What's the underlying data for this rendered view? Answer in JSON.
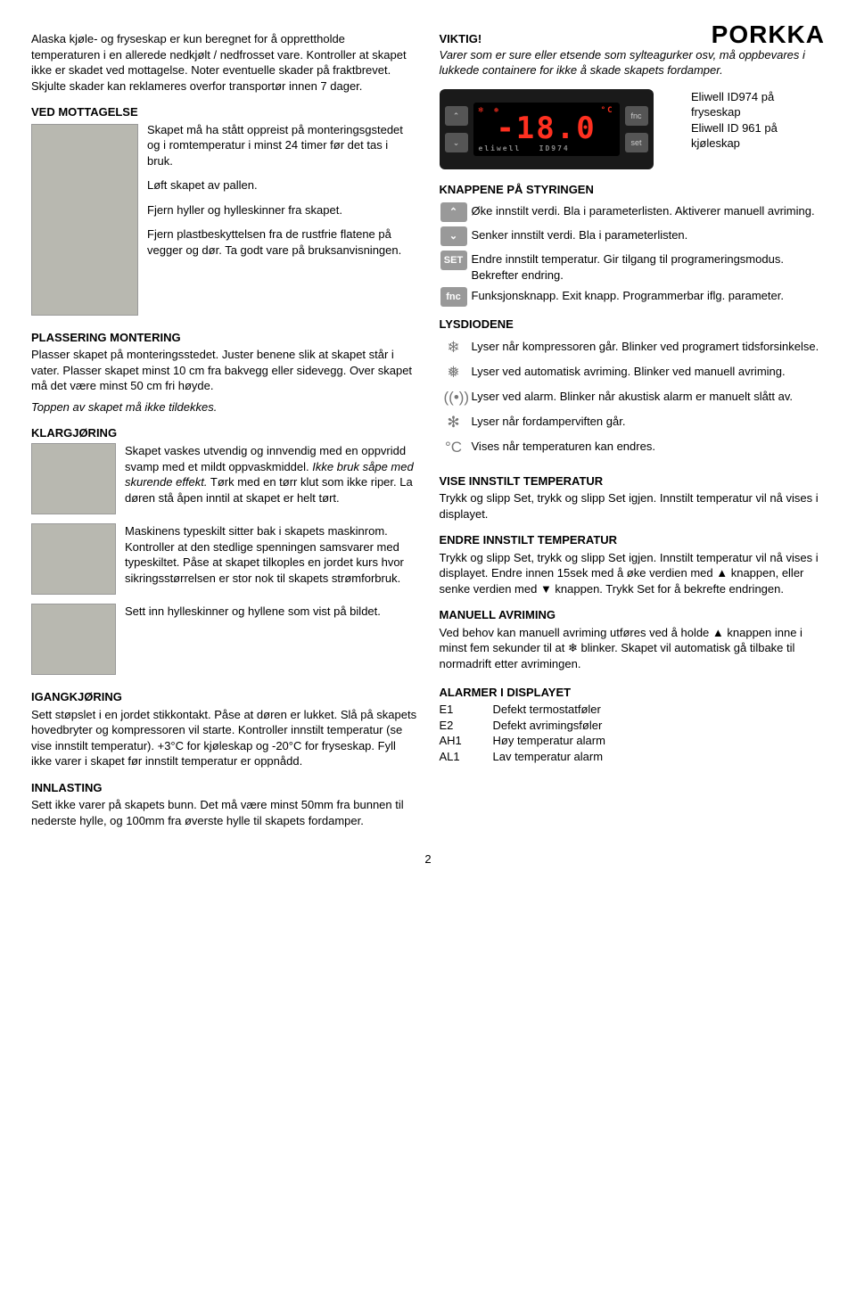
{
  "brand": "PORKKA",
  "pageNumber": "2",
  "left": {
    "intro": "Alaska kjøle- og fryseskap er kun beregnet for å opprettholde temperaturen i en allerede nedkjølt / nedfrosset vare. Kontroller at skapet ikke er skadet ved mottagelse. Noter eventuelle skader på fraktbrevet. Skjulte skader kan reklameres overfor transportør innen 7 dager.",
    "mottagelse": {
      "title": "VED MOTTAGELSE",
      "p1": "Skapet må ha stått oppreist på monteringsgstedet og i romtemperatur i minst 24 timer før det tas i bruk.",
      "p2": "Løft skapet av pallen.",
      "p3": "Fjern hyller og hylleskinner fra skapet.",
      "p4": "Fjern plastbeskyttelsen fra de rustfrie flatene på vegger og dør. Ta godt vare på bruksanvisningen."
    },
    "plassering": {
      "title": "PLASSERING MONTERING",
      "p1": "Plasser skapet på monteringsstedet. Juster benene slik at skapet står i vater. Plasser skapet minst 10 cm fra bakvegg eller sidevegg. Over skapet må det være minst 50 cm fri høyde.",
      "p2": "Toppen av skapet må ikke tildekkes."
    },
    "klargjoring": {
      "title": "KLARGJØRING",
      "p1a": "Skapet vaskes utvendig og innvendig med en oppvridd svamp med et mildt oppvaskmiddel.",
      "p1b": " Ikke bruk såpe med skurende effekt.",
      "p1c": " Tørk med en tørr klut som ikke riper. La døren stå åpen inntil at skapet er helt tørt.",
      "p2": "Maskinens typeskilt sitter bak i skapets maskinrom. Kontroller at den stedlige spenningen samsvarer med typeskiltet. Påse at skapet tilkoples en jordet kurs hvor sikringsstørrelsen er stor nok til skapets strømforbruk.",
      "p3": "Sett inn hylleskinner og hyllene som vist på bildet."
    },
    "igang": {
      "title": "IGANGKJØRING",
      "p1": "Sett støpslet i en jordet stikkontakt. Påse at døren er lukket. Slå på skapets hovedbryter og kompressoren vil starte. Kontroller innstilt temperatur (se vise innstilt temperatur). +3°C for kjøleskap og -20°C for fryseskap. Fyll ikke varer i skapet før innstilt temperatur er oppnådd."
    },
    "innlasting": {
      "title": "INNLASTING",
      "p1": "Sett ikke varer på skapets bunn. Det må være minst 50mm fra bunnen til nederste hylle, og 100mm fra øverste hylle til skapets fordamper."
    }
  },
  "right": {
    "viktig": {
      "title": "VIKTIG!",
      "p1": "Varer som er sure eller etsende som sylteagurker osv, må oppbevares i lukkede containere for ikke å skade skapets fordamper."
    },
    "display": {
      "value": "-18.0",
      "caption1": "Eliwell ID974 på fryseskap",
      "caption2": "Eliwell ID 961 på kjøleskap"
    },
    "knappene": {
      "title": "KNAPPENE PÅ STYRINGEN",
      "rows": [
        {
          "icon": "⌃",
          "type": "box",
          "text": "Øke innstilt verdi. Bla i parameterlisten. Aktiverer manuell avriming."
        },
        {
          "icon": "⌄",
          "type": "box",
          "text": "Senker innstilt verdi. Bla i parameterlisten."
        },
        {
          "icon": "SET",
          "type": "box",
          "text": "Endre innstilt temperatur. Gir tilgang til programeringsmodus. Bekrefter endring."
        },
        {
          "icon": "fnc",
          "type": "box",
          "text": "Funksjonsknapp. Exit knapp. Programmerbar iflg. parameter."
        }
      ]
    },
    "lysdiodene": {
      "title": "LYSDIODENE",
      "rows": [
        {
          "icon": "❄",
          "text": "Lyser når kompressoren går. Blinker ved programert tidsforsinkelse."
        },
        {
          "icon": "❅",
          "text": "Lyser ved automatisk avriming. Blinker ved manuell avriming."
        },
        {
          "icon": "((•))",
          "text": "Lyser ved alarm. Blinker når akustisk alarm er manuelt slått av."
        },
        {
          "icon": "✻",
          "text": "Lyser når fordamperviften går."
        },
        {
          "icon": "°C",
          "text": "Vises når temperaturen kan endres."
        }
      ]
    },
    "viseTemp": {
      "title": "VISE INNSTILT TEMPERATUR",
      "p1": "Trykk og slipp Set, trykk og slipp Set igjen. Innstilt temperatur vil nå vises i displayet."
    },
    "endreTemp": {
      "title": "ENDRE INNSTILT TEMPERATUR",
      "p1": "Trykk og slipp Set, trykk og slipp Set igjen. Innstilt temperatur vil nå vises i displayet. Endre innen 15sek med å øke verdien med ▲ knappen, eller senke verdien med ▼ knappen. Trykk Set for å bekrefte endringen."
    },
    "manuell": {
      "title": "MANUELL AVRIMING",
      "p1": "Ved behov kan manuell avriming utføres ved å holde ▲ knappen inne i minst fem sekunder til at ❄ blinker. Skapet vil automatisk gå tilbake til normadrift etter avrimingen."
    },
    "alarmer": {
      "title": "ALARMER I DISPLAYET",
      "rows": [
        {
          "code": "E1",
          "text": "Defekt termostatføler"
        },
        {
          "code": "E2",
          "text": "Defekt avrimingsføler"
        },
        {
          "code": "AH1",
          "text": "Høy temperatur alarm"
        },
        {
          "code": "AL1",
          "text": "Lav temperatur alarm"
        }
      ]
    }
  }
}
